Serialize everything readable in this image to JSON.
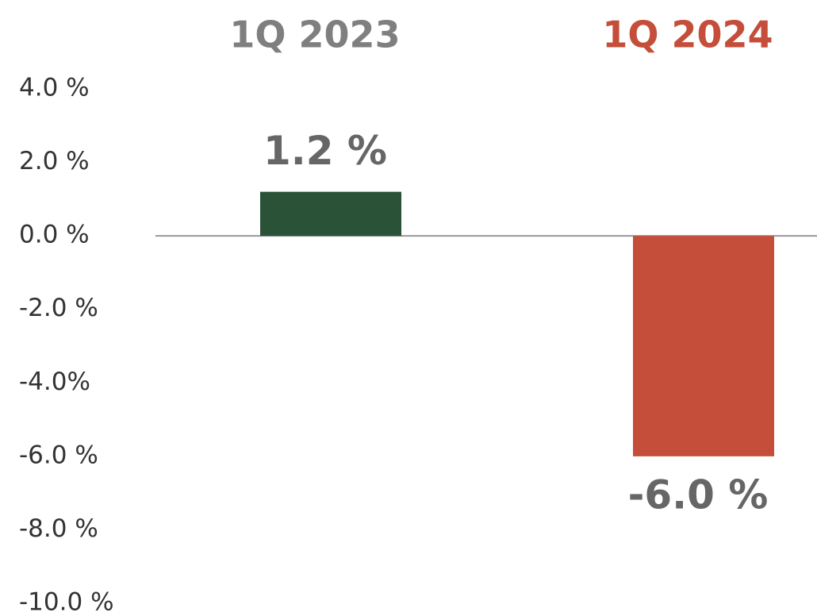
{
  "chart_data": {
    "type": "bar",
    "categories": [
      "1Q 2023",
      "1Q 2024"
    ],
    "category_label_colors": [
      "#7f7f7f",
      "#c44e3a"
    ],
    "values": [
      1.2,
      -6.0
    ],
    "value_labels": [
      "1.2 %",
      "-6.0 %"
    ],
    "colors": [
      "#2a5236",
      "#c44e3a"
    ],
    "ylim": [
      -10,
      4
    ],
    "yticks": [
      {
        "value": 4,
        "label": "4.0 %"
      },
      {
        "value": 2,
        "label": "2.0 %"
      },
      {
        "value": 0,
        "label": "0.0 %"
      },
      {
        "value": -2,
        "label": "-2.0 %"
      },
      {
        "value": -4,
        "label": "-4.0%"
      },
      {
        "value": -6,
        "label": "-6.0 %"
      },
      {
        "value": -8,
        "label": "-8.0 %"
      },
      {
        "value": -10,
        "label": "-10.0 %"
      }
    ],
    "grid": false
  }
}
